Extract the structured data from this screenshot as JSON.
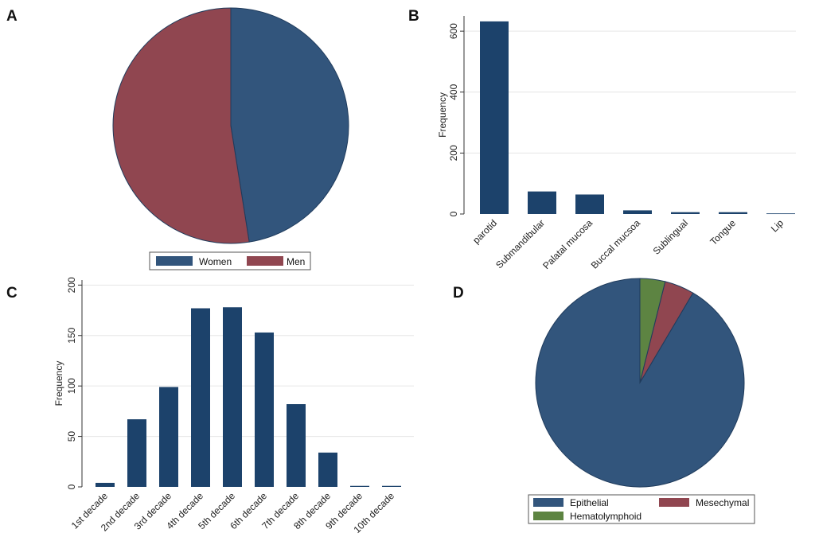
{
  "chart_data": [
    {
      "panel": "A",
      "type": "pie",
      "slices": [
        {
          "label": "Women",
          "value": 47.5,
          "color": "#32557c"
        },
        {
          "label": "Men",
          "value": 52.5,
          "color": "#904650"
        }
      ],
      "legend": [
        "Women",
        "Men"
      ]
    },
    {
      "panel": "B",
      "type": "bar",
      "categories": [
        "parotid",
        "Submandibular",
        "Palatal mucosa",
        "Buccal mucsoa",
        "Sublingual",
        "Tongue",
        "Lip"
      ],
      "values": [
        632,
        74,
        64,
        12,
        6,
        6,
        2
      ],
      "ylabel": "Frequency",
      "ylim": [
        0,
        650
      ],
      "yticks": [
        0,
        200,
        400,
        600
      ],
      "color": "#1c426b"
    },
    {
      "panel": "C",
      "type": "bar",
      "categories": [
        "1st decade",
        "2nd decade",
        "3rd decade",
        "4th decade",
        "5th decade",
        "6th decade",
        "7th decade",
        "8th decade",
        "9th decade",
        "10th decade"
      ],
      "values": [
        4,
        67,
        99,
        177,
        178,
        153,
        82,
        34,
        1,
        1
      ],
      "ylabel": "Frequency",
      "ylim": [
        0,
        205
      ],
      "yticks": [
        0,
        50,
        100,
        150,
        200
      ],
      "color": "#1c426b"
    },
    {
      "panel": "D",
      "type": "pie",
      "slices": [
        {
          "label": "Epithelial",
          "value": 91.5,
          "color": "#32557c"
        },
        {
          "label": "Mesechymal",
          "value": 4.6,
          "color": "#904650"
        },
        {
          "label": "Hematolymphoid",
          "value": 3.9,
          "color": "#5d8442"
        }
      ],
      "legend": [
        "Epithelial",
        "Mesechymal",
        "Hematolymphoid"
      ]
    }
  ]
}
